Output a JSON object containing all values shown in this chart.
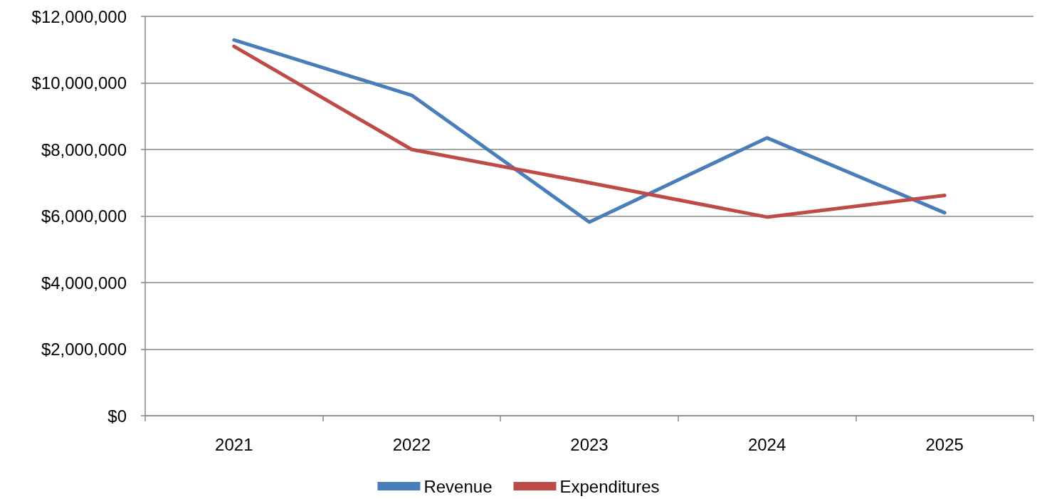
{
  "chart_data": {
    "type": "line",
    "categories": [
      "2021",
      "2022",
      "2023",
      "2024",
      "2025"
    ],
    "series": [
      {
        "name": "Revenue",
        "color": "#4a7ebb",
        "values": [
          11290000,
          9630000,
          5820000,
          8350000,
          6100000
        ]
      },
      {
        "name": "Expenditures",
        "color": "#be4b48",
        "values": [
          11100000,
          8000000,
          7000000,
          5970000,
          6620000
        ]
      }
    ],
    "ylim": [
      0,
      12000000
    ],
    "yticks": [
      {
        "value": 0,
        "label": "$0"
      },
      {
        "value": 2000000,
        "label": "$2,000,000"
      },
      {
        "value": 4000000,
        "label": "$4,000,000"
      },
      {
        "value": 6000000,
        "label": "$6,000,000"
      },
      {
        "value": 8000000,
        "label": "$8,000,000"
      },
      {
        "value": 10000000,
        "label": "$10,000,000"
      },
      {
        "value": 12000000,
        "label": "$12,000,000"
      }
    ],
    "grid": "y",
    "legend": "bottom",
    "marker": "none",
    "line_style": "solid"
  }
}
